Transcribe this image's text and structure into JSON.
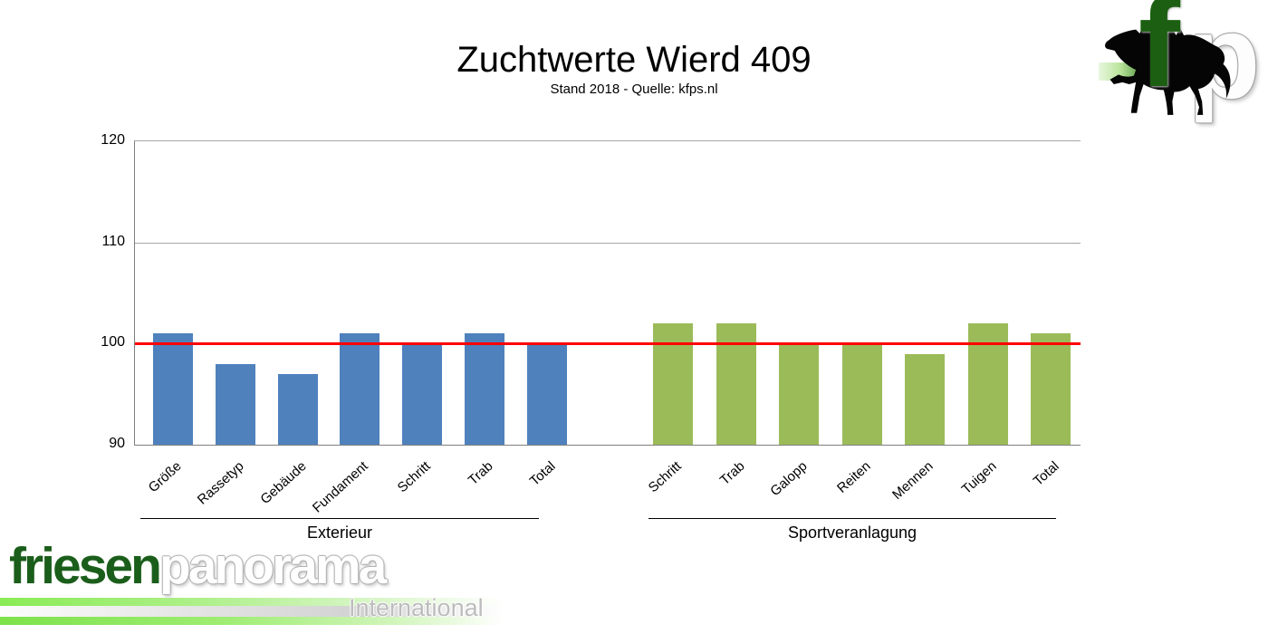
{
  "chart_data": {
    "type": "bar",
    "title": "Zuchtwerte Wierd 409",
    "subtitle": "Stand 2018 - Quelle: kfps.nl",
    "xlabel": "",
    "ylabel": "",
    "ylim": [
      90,
      120
    ],
    "yticks": [
      90,
      100,
      110,
      120
    ],
    "grid": "horizontal",
    "legend": "none",
    "reference_line": {
      "value": 100,
      "color": "#FF0000"
    },
    "groups": [
      {
        "name": "Exterieur",
        "color": "#4F81BD",
        "categories": [
          "Größe",
          "Rassetyp",
          "Gebäude",
          "Fundament",
          "Schritt",
          "Trab",
          "Total"
        ],
        "values": [
          101,
          98,
          97,
          101,
          100,
          101,
          100
        ]
      },
      {
        "name": "Sportveranlagung",
        "color": "#9BBB59",
        "categories": [
          "Schritt",
          "Trab",
          "Galopp",
          "Reiten",
          "Mennen",
          "Tuigen",
          "Total"
        ],
        "values": [
          102,
          102,
          100,
          100,
          99,
          102,
          101
        ]
      }
    ]
  },
  "logos": {
    "fp": {
      "letter_f": "f",
      "letter_p": "p"
    },
    "friesenpanorama": {
      "word1": "friesen",
      "word2": "panorama",
      "tagline": "International"
    }
  }
}
